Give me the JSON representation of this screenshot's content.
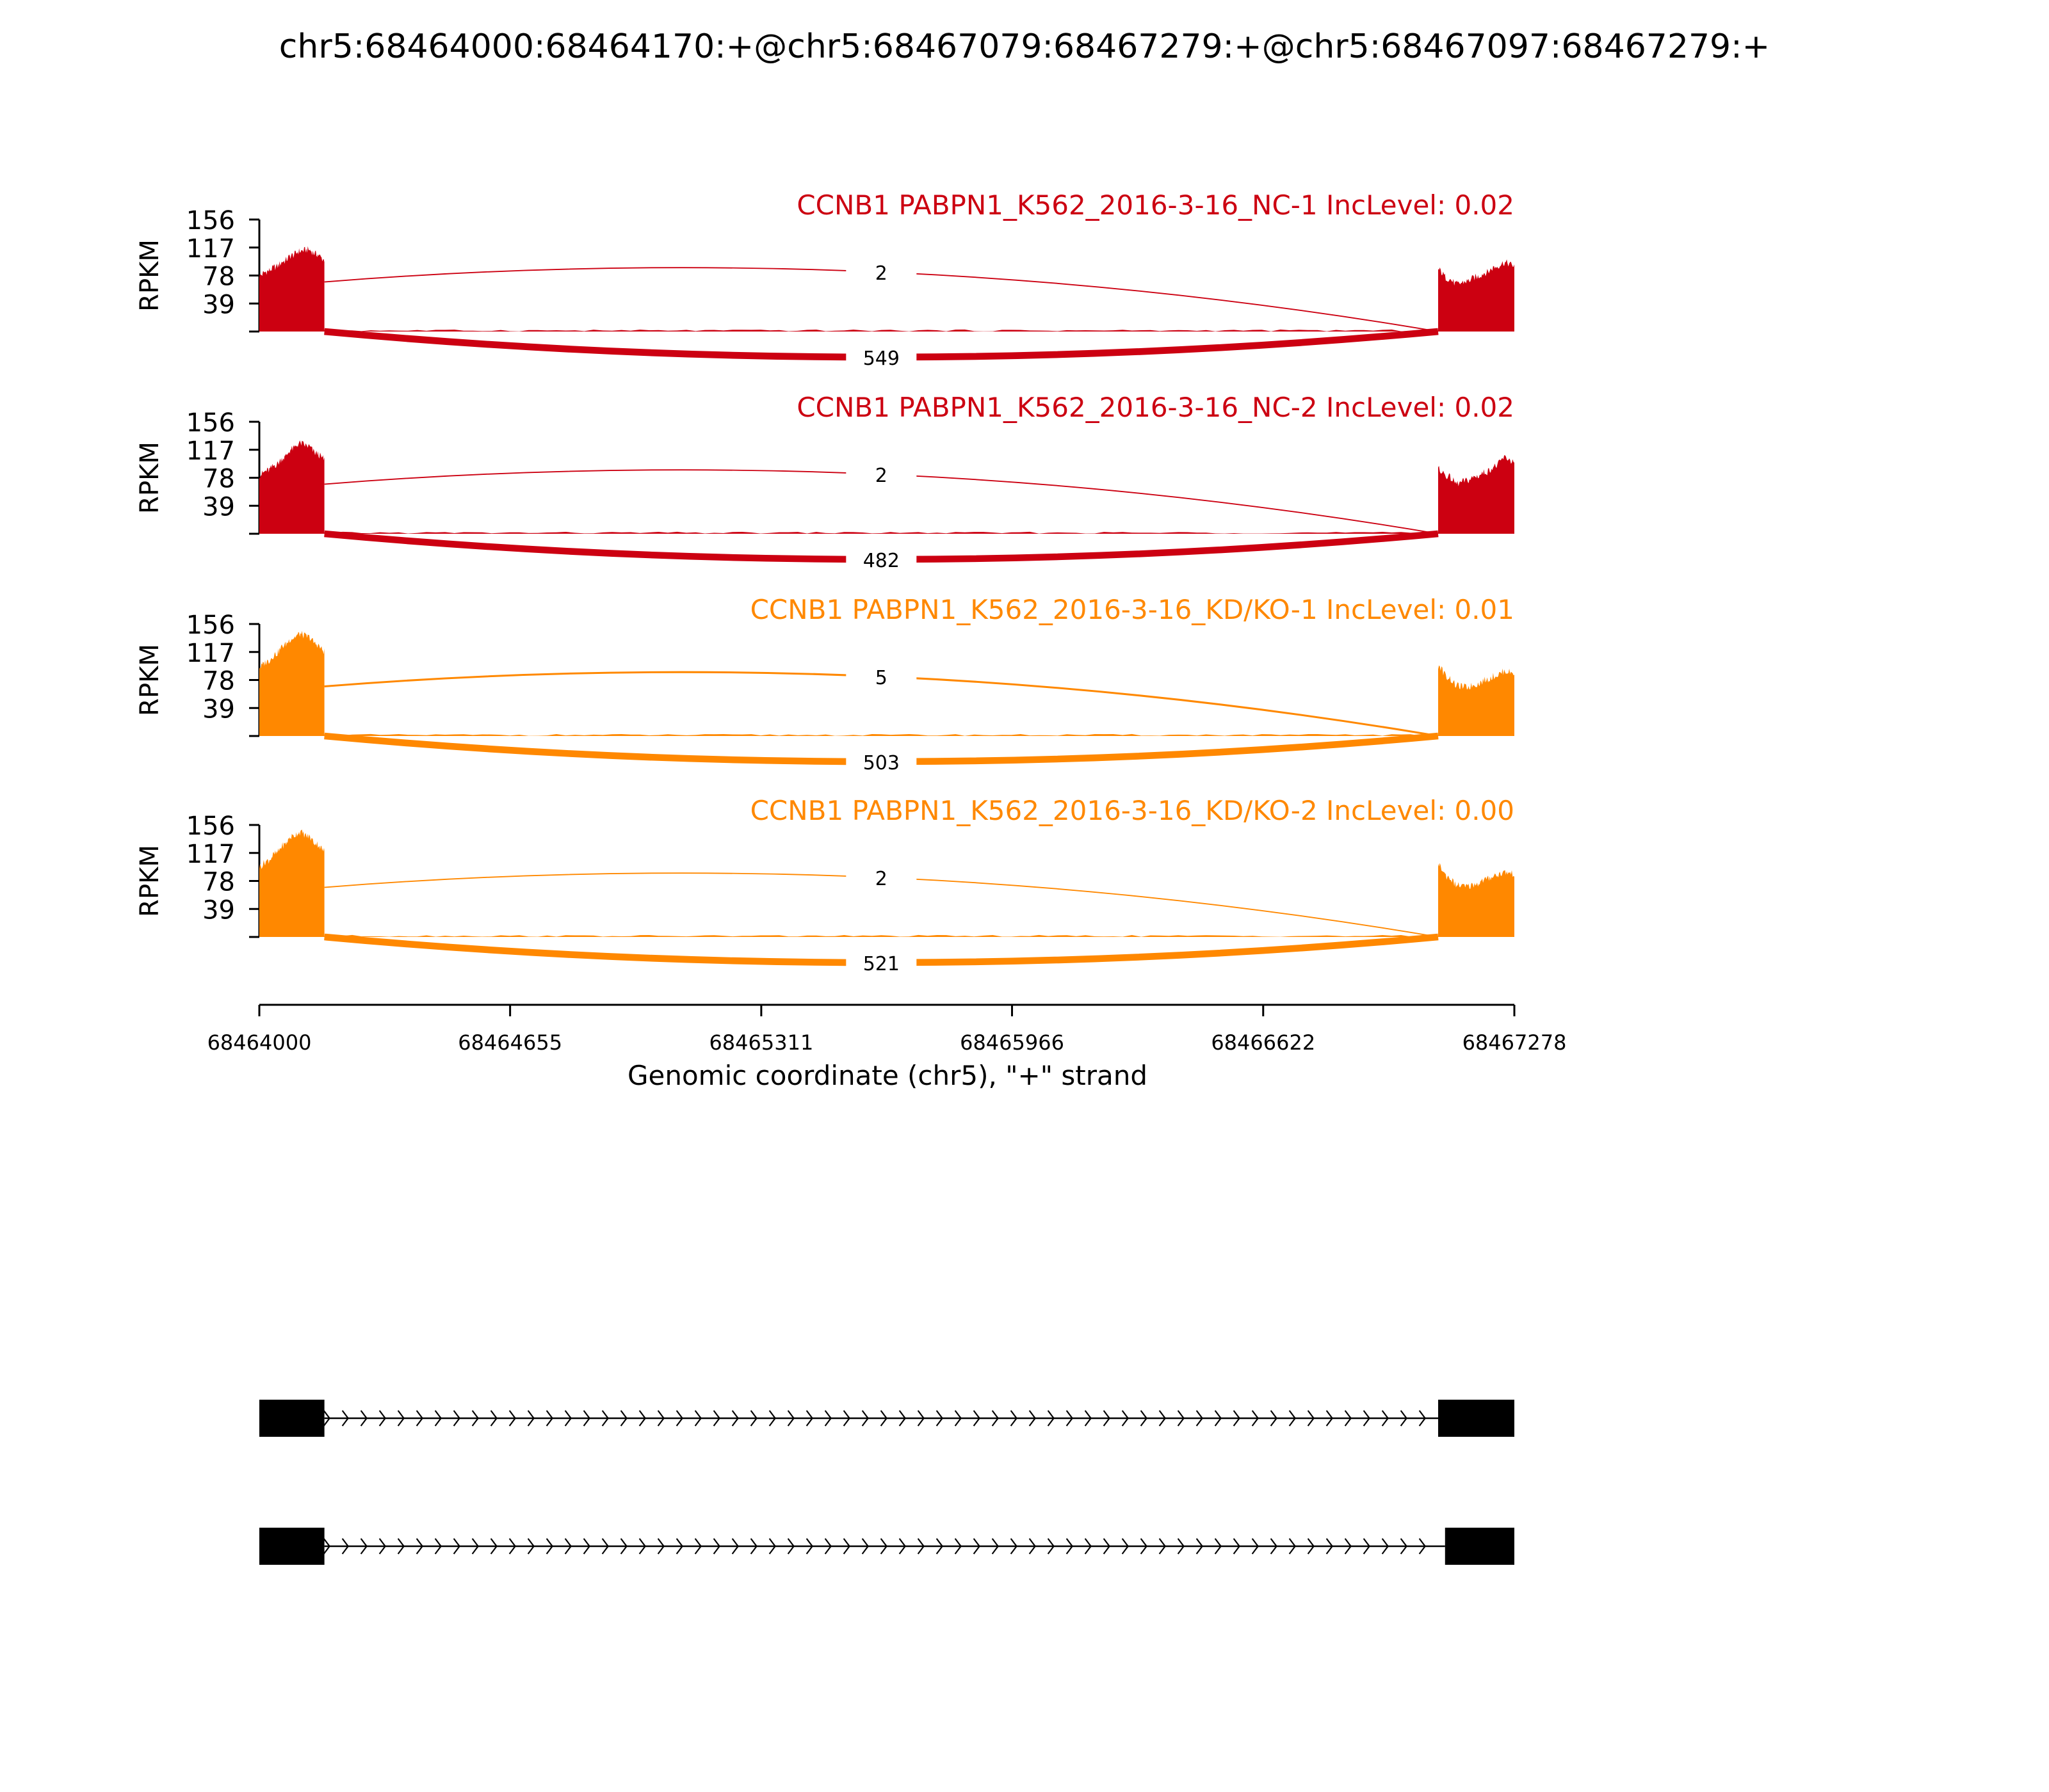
{
  "title": "chr5:68464000:68464170:+@chr5:68467079:68467279:+@chr5:68467097:68467279:+",
  "colors": {
    "nc": "#cc0011",
    "kd": "#ff8800",
    "axis": "#000000"
  },
  "chart_data": {
    "type": "sashimi",
    "xlabel": "Genomic coordinate (chr5), \"+\" strand",
    "xlim": [
      68464000,
      68467278
    ],
    "xticks": [
      "68464000",
      "68464655",
      "68465311",
      "68465966",
      "68466622",
      "68467278"
    ],
    "ylabel": "RPKM",
    "ylim": [
      0,
      156
    ],
    "yticks": [
      "39",
      "78",
      "117",
      "156"
    ],
    "exons": [
      {
        "start": 68464000,
        "end": 68464170
      },
      {
        "start": 68467079,
        "end": 68467279
      }
    ],
    "samples": [
      {
        "label": "CCNB1 PABPN1_K562_2016-3-16_NC-1 IncLevel: 0.02",
        "group": "nc",
        "exon1_level": [
          78,
          84,
          90,
          98,
          106,
          112,
          114,
          108,
          100
        ],
        "exon2_level": [
          86,
          74,
          66,
          70,
          76,
          82,
          90,
          96,
          92
        ],
        "junctions": [
          {
            "from": 68464170,
            "to": 68467079,
            "count": "2",
            "side": "above"
          },
          {
            "from": 68464170,
            "to": 68467079,
            "count": "549",
            "side": "below"
          }
        ]
      },
      {
        "label": "CCNB1 PABPN1_K562_2016-3-16_NC-2 IncLevel: 0.02",
        "group": "nc",
        "exon1_level": [
          82,
          88,
          96,
          106,
          118,
          126,
          122,
          112,
          104
        ],
        "exon2_level": [
          90,
          80,
          70,
          74,
          80,
          86,
          94,
          106,
          100
        ],
        "junctions": [
          {
            "from": 68464170,
            "to": 68467079,
            "count": "2",
            "side": "above"
          },
          {
            "from": 68464170,
            "to": 68467079,
            "count": "482",
            "side": "below"
          }
        ]
      },
      {
        "label": "CCNB1 PABPN1_K562_2016-3-16_KD/KO-1 IncLevel: 0.01",
        "group": "kd",
        "exon1_level": [
          96,
          104,
          114,
          126,
          136,
          142,
          138,
          128,
          118
        ],
        "exon2_level": [
          98,
          82,
          70,
          68,
          72,
          78,
          84,
          90,
          88
        ],
        "junctions": [
          {
            "from": 68464170,
            "to": 68467079,
            "count": "5",
            "side": "above"
          },
          {
            "from": 68464170,
            "to": 68467079,
            "count": "503",
            "side": "below"
          }
        ]
      },
      {
        "label": "CCNB1 PABPN1_K562_2016-3-16_KD/KO-2 IncLevel: 0.00",
        "group": "kd",
        "exon1_level": [
          98,
          106,
          116,
          128,
          140,
          146,
          140,
          130,
          120
        ],
        "exon2_level": [
          100,
          84,
          72,
          70,
          74,
          80,
          86,
          90,
          88
        ],
        "junctions": [
          {
            "from": 68464170,
            "to": 68467079,
            "count": "2",
            "side": "above"
          },
          {
            "from": 68464170,
            "to": 68467079,
            "count": "521",
            "side": "below"
          }
        ]
      }
    ],
    "isoforms": [
      {
        "exons": [
          [
            68464000,
            68464170
          ],
          [
            68467079,
            68467279
          ]
        ]
      },
      {
        "exons": [
          [
            68464000,
            68464170
          ],
          [
            68467097,
            68467279
          ]
        ]
      }
    ]
  }
}
